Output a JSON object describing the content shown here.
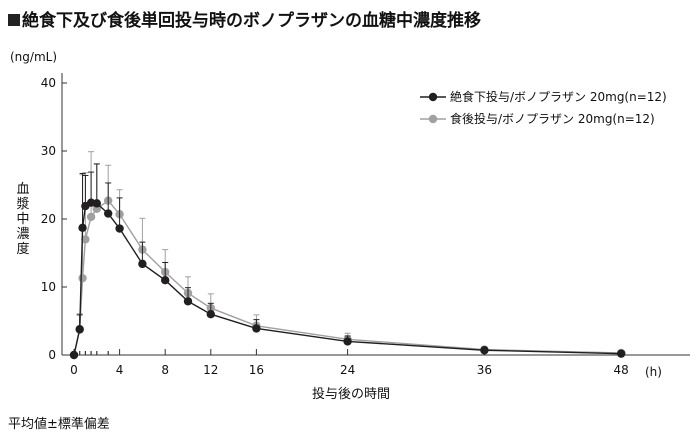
{
  "header": {
    "title": "絶食下及び食後単回投与時のボノプラザンの血糖中濃度推移"
  },
  "footnote": "平均値±標準偏差",
  "chart_data": {
    "type": "line",
    "title": "絶食下及び食後単回投与時のボノプラザンの血糖中濃度推移",
    "ylabel": "血漿中濃度",
    "yunit": "(ng/mL)",
    "xlabel": "投与後の時間",
    "xunit": "(h)",
    "xlim": [
      0,
      50
    ],
    "ylim": [
      0,
      40
    ],
    "xticks": [
      0,
      4,
      8,
      12,
      16,
      24,
      36,
      48
    ],
    "yticks": [
      0,
      10,
      20,
      30,
      40
    ],
    "grid": false,
    "legend": "top-right",
    "series": [
      {
        "name": "絶食下投与/ボノプラザン 20mg(n=12)",
        "color": "#231f20",
        "x": [
          0,
          0.5,
          0.75,
          1,
          1.5,
          2,
          3,
          4,
          6,
          8,
          10,
          12,
          16,
          24,
          36,
          48
        ],
        "y": [
          0,
          3.8,
          18.7,
          21.9,
          22.4,
          22.3,
          20.8,
          18.6,
          13.4,
          11.0,
          7.9,
          6.0,
          3.9,
          2.0,
          0.7,
          0.2
        ],
        "sd": [
          0,
          2.2,
          8.0,
          4.5,
          4.5,
          5.8,
          4.5,
          4.5,
          3.2,
          2.6,
          2.0,
          1.6,
          1.3,
          0.8,
          0.3,
          0.1
        ]
      },
      {
        "name": "食後投与/ボノプラザン 20mg(n=12)",
        "color": "#a0a0a0",
        "x": [
          0,
          0.5,
          0.75,
          1,
          1.5,
          2,
          3,
          4,
          6,
          8,
          10,
          12,
          16,
          24,
          36,
          48
        ],
        "y": [
          0,
          3.7,
          11.3,
          17.0,
          20.3,
          21.5,
          22.7,
          20.7,
          15.5,
          12.2,
          9.1,
          6.9,
          4.3,
          2.3,
          0.8,
          0.3
        ],
        "sd": [
          0,
          2.1,
          15.2,
          9.8,
          9.6,
          6.6,
          5.2,
          3.6,
          4.6,
          3.3,
          2.4,
          2.1,
          1.6,
          0.9,
          0.4,
          0.2
        ]
      }
    ]
  }
}
